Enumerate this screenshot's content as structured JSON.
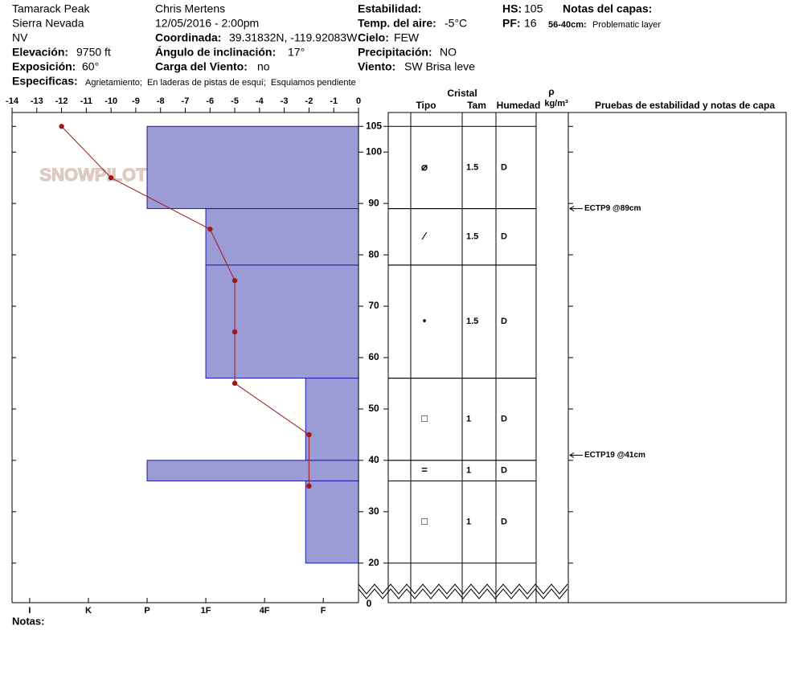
{
  "header": {
    "site": "Tamarack Peak",
    "range": "Sierra Nevada",
    "state": "NV",
    "elevation_label": "Elevación:",
    "elevation": "9750 ft",
    "aspect_label": "Exposición:",
    "aspect": "60°",
    "observer": "Chris Mertens",
    "datetime": "12/05/2016 - 2:00pm",
    "coord_label": "Coordinada:",
    "coord": "39.31832N, -119.92083W",
    "slope_label": "Ángulo de inclinación:",
    "slope": "17°",
    "wind_load_label": "Carga del Viento:",
    "wind_load": "no",
    "stability_label": "Estabilidad:",
    "air_temp_label": "Temp. del aire:",
    "air_temp": "-5°C",
    "sky_label": "Cielo:",
    "sky": "FEW",
    "precip_label": "Precipitación:",
    "precip": "NO",
    "wind_label": "Viento:",
    "wind": "SW Brisa leve",
    "hs_label": "HS:",
    "hs": "105",
    "pf_label": "PF:",
    "pf": "16",
    "layer_notes_label": "Notas del capas:",
    "layer_note_range": "56-40cm:",
    "layer_note": "Problematic layer",
    "specifics_label": "Especificas:",
    "specifics": [
      "Agrietamiento;",
      "En laderas de pistas de esquí;",
      "Esquiamos pendiente"
    ],
    "logo": "SNOWPILOT"
  },
  "chart_data": {
    "type": "snow-profile",
    "ylim": [
      12.3,
      107.7
    ],
    "yticks": [
      20,
      30,
      40,
      50,
      60,
      70,
      80,
      90,
      100,
      105
    ],
    "axis_break_label": 0,
    "xlim": [
      -14,
      0
    ],
    "xticks": [
      -14,
      -13,
      -12,
      -11,
      -10,
      -9,
      -8,
      -7,
      -6,
      -5,
      -4,
      -3,
      -2,
      -1,
      0
    ],
    "hardness_lim": [
      6.3,
      0.4
    ],
    "hardness_ticks": [
      {
        "value": 6,
        "label": "I"
      },
      {
        "value": 5,
        "label": "K"
      },
      {
        "value": 4,
        "label": "P"
      },
      {
        "value": 3,
        "label": "1F"
      },
      {
        "value": 2,
        "label": "4F"
      },
      {
        "value": 1,
        "label": "F"
      }
    ],
    "temperature": {
      "color": "#a01818",
      "depths": [
        105,
        95,
        85,
        75,
        65,
        55,
        45,
        35
      ],
      "values": [
        -12,
        -10,
        -6,
        -5,
        -5,
        -5,
        -2,
        -2
      ]
    },
    "layer_color": "#9b9bd6",
    "columns": {
      "crystal": "Cristal",
      "type": "Tipo",
      "size": "Tam",
      "moisture": "Humedad",
      "density": "ρ",
      "density_unit": "kg/m³",
      "tests": "Pruebas de estabilidad y notas de capa"
    },
    "layers": [
      {
        "top": 105,
        "bottom": 89,
        "hardness": 4,
        "grain": "⌀",
        "size": 1.5,
        "moisture": "D"
      },
      {
        "top": 89,
        "bottom": 78,
        "hardness": 3,
        "grain": "⁄",
        "size": 1.5,
        "moisture": "D"
      },
      {
        "top": 78,
        "bottom": 56,
        "hardness": 3,
        "grain": "•",
        "size": 1.5,
        "moisture": "D"
      },
      {
        "top": 56,
        "bottom": 40,
        "hardness": 1.3,
        "grain": "□",
        "size": 1,
        "moisture": "D"
      },
      {
        "top": 40,
        "bottom": 36,
        "hardness": 4,
        "grain": "=",
        "size": 1,
        "moisture": "D"
      },
      {
        "top": 36,
        "bottom": 20,
        "hardness": 1.3,
        "grain": "□",
        "size": 1,
        "moisture": "D"
      }
    ],
    "tests": [
      {
        "depth": 89,
        "label": "ECTP9 @89cm"
      },
      {
        "depth": 41,
        "label": "ECTP19 @41cm"
      }
    ],
    "notes_label": "Notas:"
  }
}
